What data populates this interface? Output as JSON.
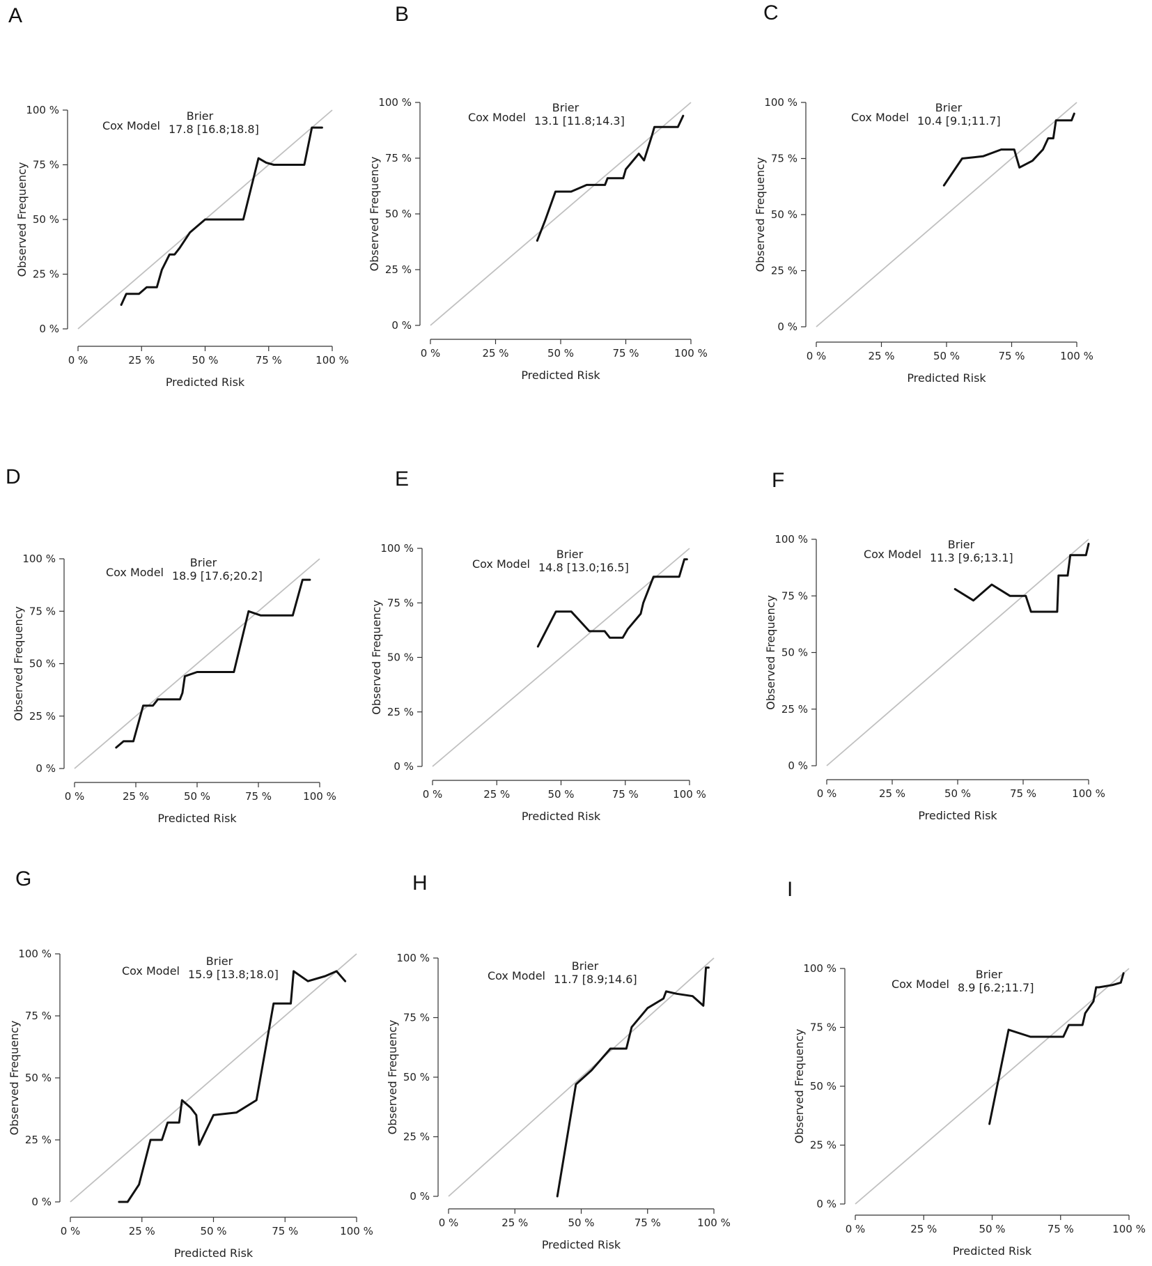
{
  "legend_heading": "Brier",
  "model_name": "Cox Model",
  "colors": {
    "curve": "#111111",
    "reference": "#c0c0c0",
    "axis": "#333333"
  },
  "chart_data": [
    {
      "panel": "A",
      "type": "line",
      "brier": "17.8 [16.8;18.8]",
      "xlabel": "Predicted Risk",
      "ylabel": "Observed Frequency",
      "xlim": [
        0,
        100
      ],
      "ylim": [
        0,
        100
      ],
      "xticks": [
        "0 %",
        "25 %",
        "50 %",
        "75 %",
        "100 %"
      ],
      "yticks": [
        "0 %",
        "25 %",
        "50 %",
        "75 %",
        "100 %"
      ],
      "reference_line": [
        [
          0,
          0
        ],
        [
          100,
          100
        ]
      ],
      "series": [
        {
          "name": "Cox Model",
          "x": [
            17,
            19,
            24,
            27,
            31,
            33,
            36,
            38,
            40,
            44,
            47,
            50,
            58,
            65,
            71,
            74,
            77,
            89,
            92,
            96
          ],
          "y": [
            11,
            16,
            16,
            19,
            19,
            27,
            34,
            34,
            37,
            44,
            47,
            50,
            50,
            50,
            78,
            76,
            75,
            75,
            92,
            92
          ]
        }
      ]
    },
    {
      "panel": "B",
      "type": "line",
      "brier": "13.1 [11.8;14.3]",
      "xlabel": "Predicted Risk",
      "ylabel": "Observed Frequency",
      "xlim": [
        0,
        100
      ],
      "ylim": [
        0,
        100
      ],
      "xticks": [
        "0 %",
        "25 %",
        "50 %",
        "75 %",
        "100 %"
      ],
      "yticks": [
        "0 %",
        "25 %",
        "50 %",
        "75 %",
        "100 %"
      ],
      "reference_line": [
        [
          0,
          0
        ],
        [
          100,
          100
        ]
      ],
      "series": [
        {
          "name": "Cox Model",
          "x": [
            41,
            44,
            48,
            54,
            60,
            67,
            68,
            74,
            75,
            80,
            82,
            85,
            86,
            95,
            97
          ],
          "y": [
            38,
            47,
            60,
            60,
            63,
            63,
            66,
            66,
            70,
            77,
            74,
            85,
            89,
            89,
            94
          ]
        }
      ]
    },
    {
      "panel": "C",
      "type": "line",
      "brier": "10.4 [9.1;11.7]",
      "xlabel": "Predicted Risk",
      "ylabel": "Observed Frequency",
      "xlim": [
        0,
        100
      ],
      "ylim": [
        0,
        100
      ],
      "xticks": [
        "0 %",
        "25 %",
        "50 %",
        "75 %",
        "100 %"
      ],
      "yticks": [
        "0 %",
        "25 %",
        "50 %",
        "75 %",
        "100 %"
      ],
      "reference_line": [
        [
          0,
          0
        ],
        [
          100,
          100
        ]
      ],
      "series": [
        {
          "name": "Cox Model",
          "x": [
            49,
            56,
            64,
            71,
            76,
            78,
            83,
            87,
            89,
            91,
            92,
            98,
            99
          ],
          "y": [
            63,
            75,
            76,
            79,
            79,
            71,
            74,
            79,
            84,
            84,
            92,
            92,
            95
          ]
        }
      ]
    },
    {
      "panel": "D",
      "type": "line",
      "brier": "18.9 [17.6;20.2]",
      "xlabel": "Predicted Risk",
      "ylabel": "Observed Frequency",
      "xlim": [
        0,
        100
      ],
      "ylim": [
        0,
        100
      ],
      "xticks": [
        "0 %",
        "25 %",
        "50 %",
        "75 %",
        "100 %"
      ],
      "yticks": [
        "0 %",
        "25 %",
        "50 %",
        "75 %",
        "100 %"
      ],
      "reference_line": [
        [
          0,
          0
        ],
        [
          100,
          100
        ]
      ],
      "series": [
        {
          "name": "Cox Model",
          "x": [
            17,
            20,
            24,
            28,
            32,
            34,
            43,
            44,
            45,
            50,
            65,
            71,
            76,
            89,
            93,
            96
          ],
          "y": [
            10,
            13,
            13,
            30,
            30,
            33,
            33,
            36,
            44,
            46,
            46,
            75,
            73,
            73,
            90,
            90
          ]
        }
      ]
    },
    {
      "panel": "E",
      "type": "line",
      "brier": "14.8 [13.0;16.5]",
      "xlabel": "Predicted Risk",
      "ylabel": "Observed Frequency",
      "xlim": [
        0,
        100
      ],
      "ylim": [
        0,
        100
      ],
      "xticks": [
        "0 %",
        "25 %",
        "50 %",
        "75 %",
        "100 %"
      ],
      "yticks": [
        "0 %",
        "25 %",
        "50 %",
        "75 %",
        "100 %"
      ],
      "reference_line": [
        [
          0,
          0
        ],
        [
          100,
          100
        ]
      ],
      "series": [
        {
          "name": "Cox Model",
          "x": [
            41,
            48,
            54,
            61,
            67,
            69,
            74,
            76,
            81,
            82,
            86,
            96,
            98,
            99
          ],
          "y": [
            55,
            71,
            71,
            62,
            62,
            59,
            59,
            63,
            70,
            75,
            87,
            87,
            95,
            95
          ]
        }
      ]
    },
    {
      "panel": "F",
      "type": "line",
      "brier": "11.3 [9.6;13.1]",
      "xlabel": "Predicted Risk",
      "ylabel": "Observed Frequency",
      "xlim": [
        0,
        100
      ],
      "ylim": [
        0,
        100
      ],
      "xticks": [
        "0 %",
        "25 %",
        "50 %",
        "75 %",
        "100 %"
      ],
      "yticks": [
        "0 %",
        "25 %",
        "50 %",
        "75 %",
        "100 %"
      ],
      "reference_line": [
        [
          0,
          0
        ],
        [
          100,
          100
        ]
      ],
      "series": [
        {
          "name": "Cox Model",
          "x": [
            49,
            56,
            63,
            70,
            76,
            78,
            88,
            88.5,
            92,
            93,
            99,
            100
          ],
          "y": [
            78,
            73,
            80,
            75,
            75,
            68,
            68,
            84,
            84,
            93,
            93,
            98
          ]
        }
      ]
    },
    {
      "panel": "G",
      "type": "line",
      "brier": "15.9 [13.8;18.0]",
      "xlabel": "Predicted Risk",
      "ylabel": "Observed Frequency",
      "xlim": [
        0,
        100
      ],
      "ylim": [
        0,
        100
      ],
      "xticks": [
        "0 %",
        "25 %",
        "50 %",
        "75 %",
        "100 %"
      ],
      "yticks": [
        "0 %",
        "25 %",
        "50 %",
        "75 %",
        "100 %"
      ],
      "reference_line": [
        [
          0,
          0
        ],
        [
          100,
          100
        ]
      ],
      "series": [
        {
          "name": "Cox Model",
          "x": [
            17,
            20,
            24,
            28,
            32,
            34,
            38,
            39,
            42,
            44,
            45,
            50,
            58,
            65,
            71,
            76,
            77,
            78,
            83,
            89,
            93,
            96
          ],
          "y": [
            0,
            0,
            7,
            25,
            25,
            32,
            32,
            41,
            38,
            35,
            23,
            35,
            36,
            41,
            80,
            80,
            80,
            93,
            89,
            91,
            93,
            89
          ]
        }
      ]
    },
    {
      "panel": "H",
      "type": "line",
      "brier": "11.7 [8.9;14.6]",
      "xlabel": "Predicted Risk",
      "ylabel": "Observed Frequency",
      "xlim": [
        0,
        100
      ],
      "ylim": [
        0,
        100
      ],
      "xticks": [
        "0 %",
        "25 %",
        "50 %",
        "75 %",
        "100 %"
      ],
      "yticks": [
        "0 %",
        "25 %",
        "50 %",
        "75 %",
        "100 %"
      ],
      "reference_line": [
        [
          0,
          0
        ],
        [
          100,
          100
        ]
      ],
      "series": [
        {
          "name": "Cox Model",
          "x": [
            41,
            48,
            54,
            61,
            67,
            69,
            75,
            81,
            82,
            86,
            92,
            96,
            97,
            98
          ],
          "y": [
            0,
            47,
            53,
            62,
            62,
            71,
            79,
            83,
            86,
            85,
            84,
            80,
            96,
            96
          ]
        }
      ]
    },
    {
      "panel": "I",
      "type": "line",
      "brier": "8.9 [6.2;11.7]",
      "xlabel": "Predicted Risk",
      "ylabel": "Observed Frequency",
      "xlim": [
        0,
        100
      ],
      "ylim": [
        0,
        100
      ],
      "xticks": [
        "0 %",
        "25 %",
        "50 %",
        "75 %",
        "100 %"
      ],
      "yticks": [
        "0 %",
        "25 %",
        "50 %",
        "75 %",
        "100 %"
      ],
      "reference_line": [
        [
          0,
          0
        ],
        [
          100,
          100
        ]
      ],
      "series": [
        {
          "name": "Cox Model",
          "x": [
            49,
            56,
            64,
            71,
            76,
            78,
            83,
            84,
            87,
            88,
            89,
            94,
            97,
            98
          ],
          "y": [
            34,
            74,
            71,
            71,
            71,
            76,
            76,
            81,
            86,
            92,
            92,
            93,
            94,
            98
          ]
        }
      ]
    }
  ]
}
